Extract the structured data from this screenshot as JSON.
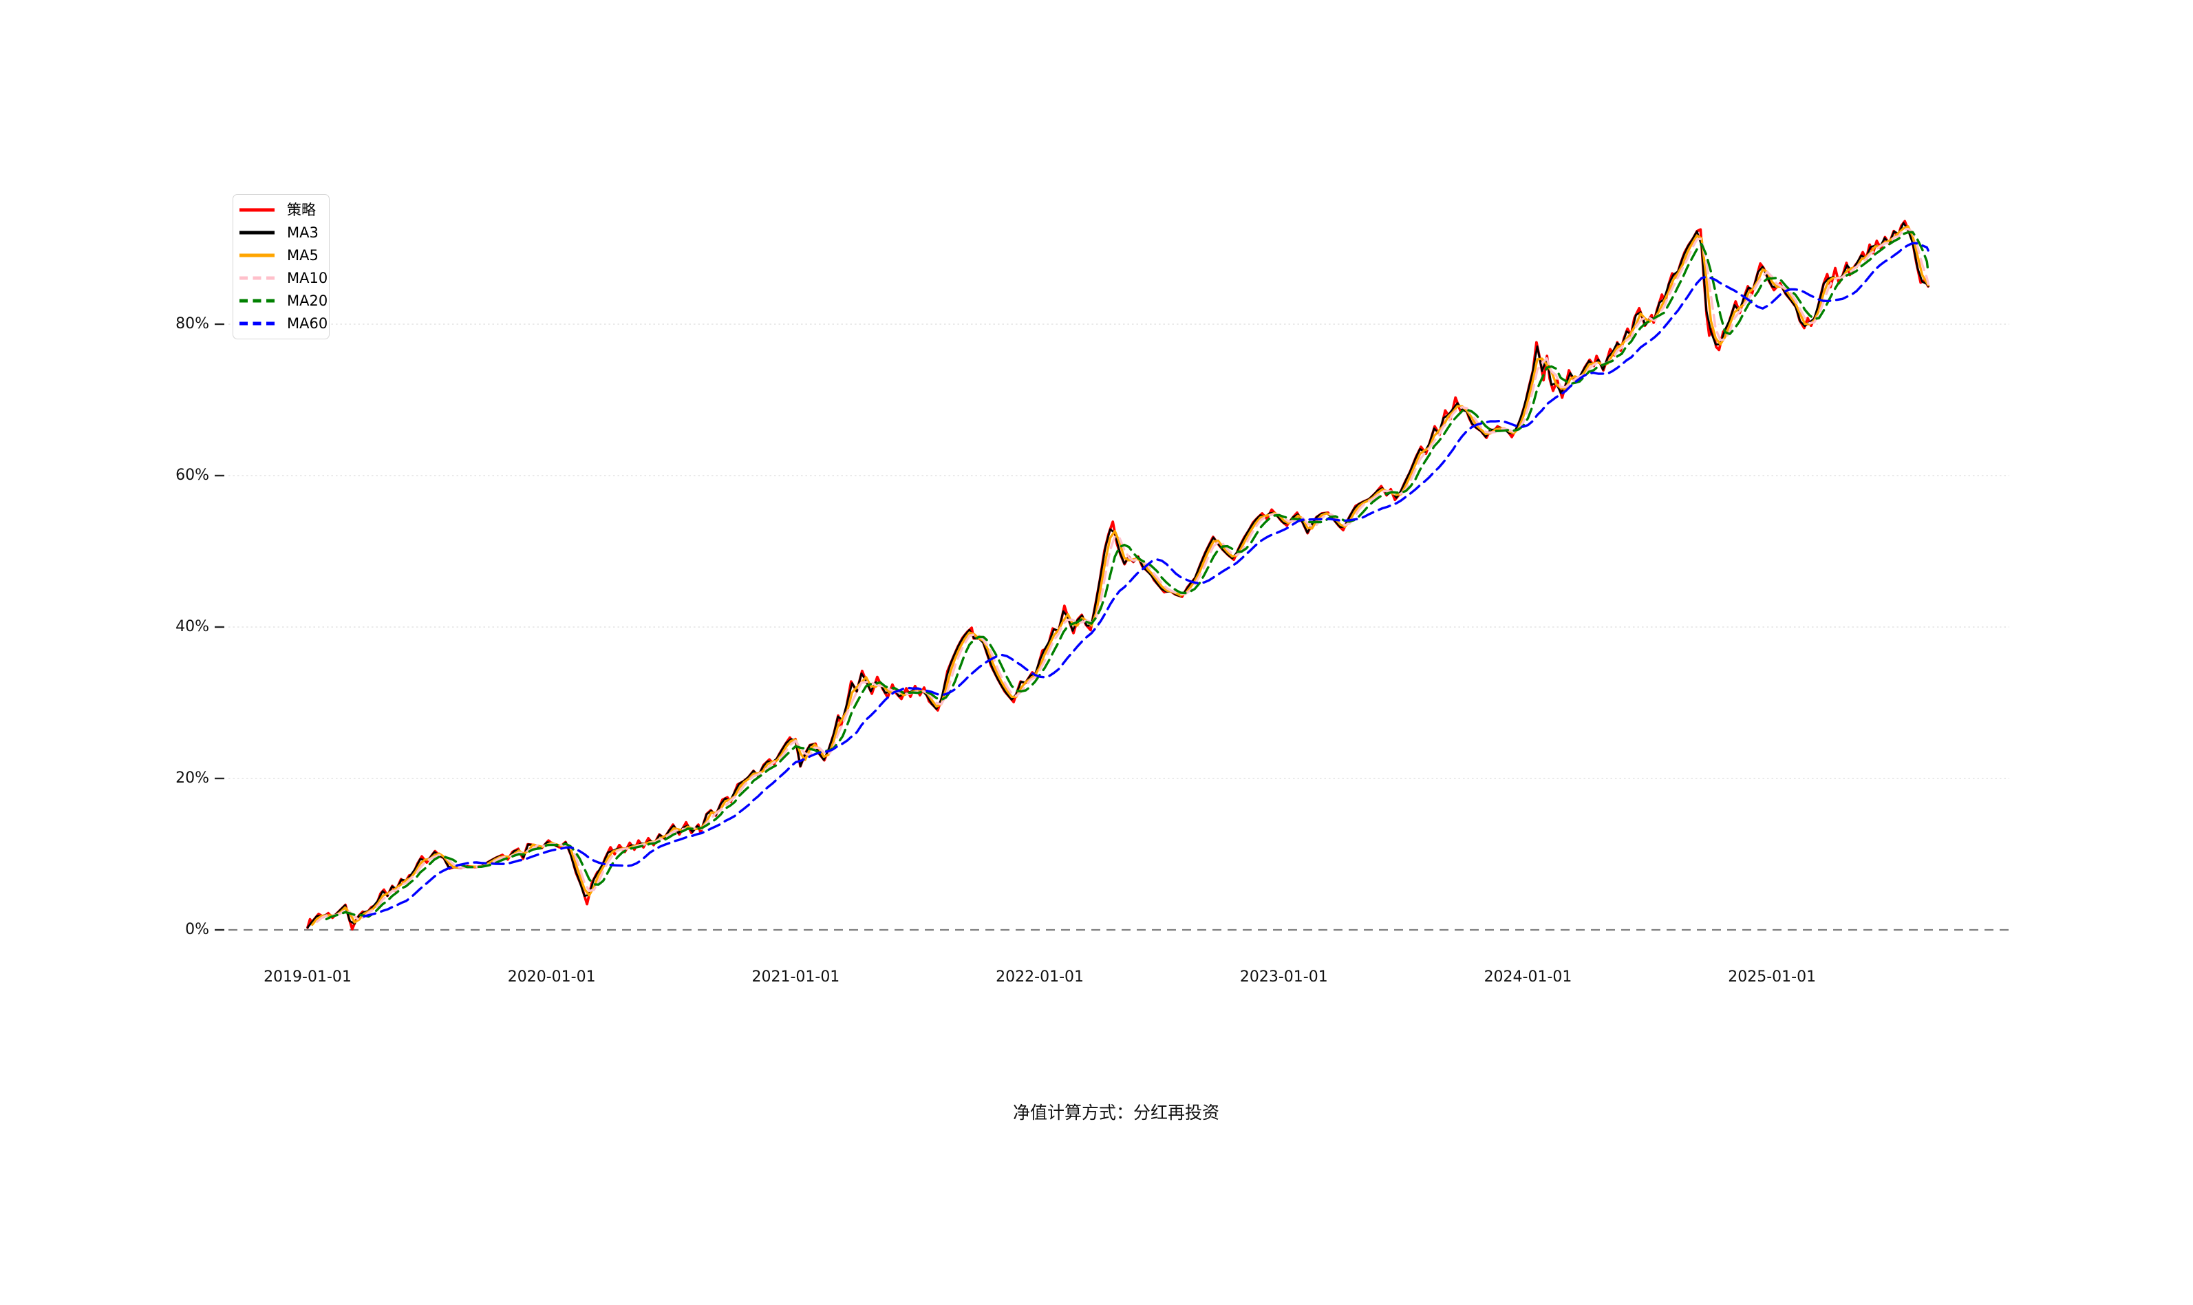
{
  "page": {
    "background_color": "#ffffff"
  },
  "footer": {
    "note": "净值计算方式：分红再投资"
  },
  "chart_data": {
    "type": "line",
    "title": "",
    "xlabel": "",
    "ylabel": "",
    "grid": "horizontal-light",
    "legend_position": "upper-left",
    "x_axis": {
      "tick_labels": [
        "2019-01-01",
        "2020-01-01",
        "2021-01-01",
        "2022-01-01",
        "2023-01-01",
        "2024-01-01",
        "2025-01-01"
      ],
      "tick_years_offset": [
        0,
        1,
        2,
        3,
        4,
        5,
        6
      ]
    },
    "y_axis": {
      "unit": "percent",
      "tick_labels": [
        "0%",
        "20%",
        "40%",
        "60%",
        "80%"
      ],
      "tick_values": [
        0,
        20,
        40,
        60,
        80
      ],
      "ylim": [
        -5,
        97
      ]
    },
    "zero_line": {
      "value": 0,
      "color": "#7f7f7f",
      "style": "dashed"
    },
    "gridline_color": "#e3e3e3",
    "series": [
      {
        "name": "策略",
        "color": "#ff0000",
        "line_style": "solid",
        "width": 3.8,
        "kind": "raw"
      },
      {
        "name": "MA3",
        "color": "#000000",
        "line_style": "solid",
        "width": 2.8,
        "ma_window_weeks": 1
      },
      {
        "name": "MA5",
        "color": "#ffa500",
        "line_style": "solid",
        "width": 3.4,
        "ma_window_weeks": 2
      },
      {
        "name": "MA10",
        "color": "#ffc0cb",
        "line_style": "dashed",
        "width": 3.4,
        "ma_window_weeks": 3
      },
      {
        "name": "MA20",
        "color": "#008000",
        "line_style": "dashed",
        "width": 3.4,
        "ma_window_weeks": 5
      },
      {
        "name": "MA60",
        "color": "#0000ff",
        "line_style": "dashed",
        "width": 3.4,
        "ma_window_weeks": 13
      }
    ],
    "points_unit": {
      "x": "years since 2019-01-01",
      "y": "cumulative return %"
    },
    "points": [
      [
        0.0,
        0.3
      ],
      [
        0.01,
        1.4
      ],
      [
        0.017,
        1.0
      ],
      [
        0.045,
        2.1
      ],
      [
        0.065,
        1.7
      ],
      [
        0.085,
        2.2
      ],
      [
        0.102,
        1.6
      ],
      [
        0.13,
        2.5
      ],
      [
        0.155,
        3.3
      ],
      [
        0.169,
        1.6
      ],
      [
        0.183,
        0.1
      ],
      [
        0.197,
        1.2
      ],
      [
        0.211,
        1.9
      ],
      [
        0.226,
        2.4
      ],
      [
        0.242,
        2.2
      ],
      [
        0.262,
        3.0
      ],
      [
        0.282,
        3.3
      ],
      [
        0.299,
        4.8
      ],
      [
        0.313,
        5.3
      ],
      [
        0.327,
        4.5
      ],
      [
        0.347,
        5.8
      ],
      [
        0.361,
        5.1
      ],
      [
        0.383,
        6.7
      ],
      [
        0.398,
        6.2
      ],
      [
        0.417,
        7.2
      ],
      [
        0.431,
        7.3
      ],
      [
        0.451,
        8.8
      ],
      [
        0.468,
        9.7
      ],
      [
        0.488,
        8.9
      ],
      [
        0.508,
        9.8
      ],
      [
        0.522,
        10.4
      ],
      [
        0.544,
        9.7
      ],
      [
        0.558,
        9.5
      ],
      [
        0.581,
        8.1
      ],
      [
        0.601,
        8.3
      ],
      [
        0.629,
        8.2
      ],
      [
        0.657,
        8.4
      ],
      [
        0.685,
        8.3
      ],
      [
        0.713,
        8.4
      ],
      [
        0.742,
        9.0
      ],
      [
        0.77,
        9.5
      ],
      [
        0.798,
        9.9
      ],
      [
        0.82,
        9.3
      ],
      [
        0.84,
        10.3
      ],
      [
        0.863,
        10.7
      ],
      [
        0.883,
        9.4
      ],
      [
        0.902,
        11.3
      ],
      [
        0.93,
        11.2
      ],
      [
        0.959,
        10.8
      ],
      [
        0.987,
        11.8
      ],
      [
        1.007,
        11.3
      ],
      [
        1.032,
        10.9
      ],
      [
        1.057,
        11.6
      ],
      [
        1.08,
        9.8
      ],
      [
        1.1,
        7.5
      ],
      [
        1.122,
        5.8
      ],
      [
        1.145,
        3.4
      ],
      [
        1.165,
        6.2
      ],
      [
        1.187,
        7.6
      ],
      [
        1.201,
        8.0
      ],
      [
        1.221,
        9.6
      ],
      [
        1.241,
        10.9
      ],
      [
        1.258,
        10.0
      ],
      [
        1.277,
        11.2
      ],
      [
        1.3,
        10.3
      ],
      [
        1.32,
        11.5
      ],
      [
        1.339,
        10.6
      ],
      [
        1.356,
        11.8
      ],
      [
        1.376,
        10.9
      ],
      [
        1.396,
        12.1
      ],
      [
        1.418,
        11.2
      ],
      [
        1.441,
        12.6
      ],
      [
        1.461,
        12.1
      ],
      [
        1.497,
        13.9
      ],
      [
        1.523,
        12.6
      ],
      [
        1.551,
        14.2
      ],
      [
        1.573,
        12.8
      ],
      [
        1.601,
        13.9
      ],
      [
        1.61,
        12.8
      ],
      [
        1.635,
        15.3
      ],
      [
        1.652,
        15.8
      ],
      [
        1.672,
        15.1
      ],
      [
        1.7,
        17.2
      ],
      [
        1.72,
        17.5
      ],
      [
        1.734,
        16.9
      ],
      [
        1.762,
        19.2
      ],
      [
        1.785,
        19.6
      ],
      [
        1.804,
        20.1
      ],
      [
        1.827,
        21.0
      ],
      [
        1.847,
        20.3
      ],
      [
        1.869,
        21.8
      ],
      [
        1.892,
        22.5
      ],
      [
        1.911,
        21.9
      ],
      [
        1.934,
        23.3
      ],
      [
        1.957,
        24.5
      ],
      [
        1.976,
        25.4
      ],
      [
        1.99,
        24.8
      ],
      [
        1.999,
        25.2
      ],
      [
        2.019,
        21.6
      ],
      [
        2.039,
        23.3
      ],
      [
        2.058,
        24.4
      ],
      [
        2.081,
        24.6
      ],
      [
        2.095,
        23.3
      ],
      [
        2.117,
        22.4
      ],
      [
        2.137,
        24.0
      ],
      [
        2.157,
        26.0
      ],
      [
        2.174,
        28.3
      ],
      [
        2.185,
        26.9
      ],
      [
        2.208,
        29.5
      ],
      [
        2.227,
        32.8
      ],
      [
        2.25,
        31.5
      ],
      [
        2.272,
        34.2
      ],
      [
        2.292,
        32.6
      ],
      [
        2.312,
        31.2
      ],
      [
        2.334,
        33.4
      ],
      [
        2.357,
        31.8
      ],
      [
        2.377,
        30.7
      ],
      [
        2.396,
        32.4
      ],
      [
        2.413,
        31.2
      ],
      [
        2.433,
        30.5
      ],
      [
        2.453,
        31.9
      ],
      [
        2.47,
        30.8
      ],
      [
        2.489,
        32.2
      ],
      [
        2.509,
        31.0
      ],
      [
        2.526,
        32.0
      ],
      [
        2.546,
        30.2
      ],
      [
        2.565,
        29.6
      ],
      [
        2.582,
        29.0
      ],
      [
        2.602,
        31.0
      ],
      [
        2.622,
        34.2
      ],
      [
        2.645,
        36.0
      ],
      [
        2.664,
        37.4
      ],
      [
        2.684,
        38.6
      ],
      [
        2.704,
        39.4
      ],
      [
        2.721,
        39.9
      ],
      [
        2.729,
        38.5
      ],
      [
        2.763,
        38.5
      ],
      [
        2.8,
        34.9
      ],
      [
        2.828,
        33.1
      ],
      [
        2.856,
        31.5
      ],
      [
        2.893,
        30.1
      ],
      [
        2.921,
        32.8
      ],
      [
        2.941,
        32.6
      ],
      [
        2.969,
        34.0
      ],
      [
        2.983,
        33.7
      ],
      [
        3.011,
        36.9
      ],
      [
        3.031,
        37.2
      ],
      [
        3.053,
        39.8
      ],
      [
        3.076,
        39.4
      ],
      [
        3.09,
        41.2
      ],
      [
        3.101,
        42.8
      ],
      [
        3.118,
        41.0
      ],
      [
        3.138,
        39.2
      ],
      [
        3.155,
        41.0
      ],
      [
        3.172,
        41.6
      ],
      [
        3.189,
        40.3
      ],
      [
        3.208,
        39.6
      ],
      [
        3.228,
        43.0
      ],
      [
        3.245,
        46.0
      ],
      [
        3.265,
        50.1
      ],
      [
        3.282,
        52.3
      ],
      [
        3.299,
        53.9
      ],
      [
        3.316,
        51.0
      ],
      [
        3.33,
        49.6
      ],
      [
        3.347,
        48.3
      ],
      [
        3.364,
        49.3
      ],
      [
        3.383,
        48.6
      ],
      [
        3.403,
        49.3
      ],
      [
        3.42,
        48.0
      ],
      [
        3.44,
        47.4
      ],
      [
        3.457,
        46.9
      ],
      [
        3.468,
        46.2
      ],
      [
        3.487,
        45.5
      ],
      [
        3.51,
        44.6
      ],
      [
        3.533,
        44.8
      ],
      [
        3.555,
        44.3
      ],
      [
        3.583,
        44.0
      ],
      [
        3.606,
        45.3
      ],
      [
        3.637,
        46.5
      ],
      [
        3.657,
        48.2
      ],
      [
        3.679,
        49.9
      ],
      [
        3.696,
        51.0
      ],
      [
        3.71,
        51.9
      ],
      [
        3.73,
        51.0
      ],
      [
        3.75,
        50.2
      ],
      [
        3.772,
        49.5
      ],
      [
        3.795,
        48.9
      ],
      [
        3.815,
        50.4
      ],
      [
        3.837,
        51.8
      ],
      [
        3.857,
        52.8
      ],
      [
        3.874,
        53.8
      ],
      [
        3.891,
        54.4
      ],
      [
        3.911,
        55.0
      ],
      [
        3.93,
        54.3
      ],
      [
        3.95,
        55.5
      ],
      [
        3.97,
        54.8
      ],
      [
        3.99,
        54.0
      ],
      [
        4.012,
        53.4
      ],
      [
        4.035,
        54.4
      ],
      [
        4.054,
        55.1
      ],
      [
        4.077,
        53.8
      ],
      [
        4.097,
        52.4
      ],
      [
        4.116,
        53.6
      ],
      [
        4.133,
        54.5
      ],
      [
        4.156,
        55.0
      ],
      [
        4.181,
        55.1
      ],
      [
        4.204,
        54.2
      ],
      [
        4.224,
        53.4
      ],
      [
        4.243,
        52.8
      ],
      [
        4.266,
        54.4
      ],
      [
        4.294,
        56.0
      ],
      [
        4.322,
        56.5
      ],
      [
        4.35,
        56.9
      ],
      [
        4.378,
        57.8
      ],
      [
        4.399,
        58.6
      ],
      [
        4.421,
        57.4
      ],
      [
        4.438,
        58.2
      ],
      [
        4.455,
        56.8
      ],
      [
        4.475,
        57.6
      ],
      [
        4.494,
        59.0
      ],
      [
        4.517,
        60.5
      ],
      [
        4.542,
        62.5
      ],
      [
        4.562,
        63.8
      ],
      [
        4.582,
        62.9
      ],
      [
        4.599,
        64.5
      ],
      [
        4.618,
        66.5
      ],
      [
        4.638,
        65.4
      ],
      [
        4.661,
        68.6
      ],
      [
        4.683,
        67.5
      ],
      [
        4.703,
        70.3
      ],
      [
        4.723,
        68.6
      ],
      [
        4.745,
        68.9
      ],
      [
        4.759,
        67.6
      ],
      [
        4.773,
        66.7
      ],
      [
        4.793,
        66.2
      ],
      [
        4.807,
        65.9
      ],
      [
        4.83,
        65.0
      ],
      [
        4.847,
        66.1
      ],
      [
        4.858,
        65.8
      ],
      [
        4.875,
        66.5
      ],
      [
        4.894,
        66.2
      ],
      [
        4.914,
        66.0
      ],
      [
        4.934,
        65.1
      ],
      [
        4.954,
        66.3
      ],
      [
        4.971,
        67.6
      ],
      [
        4.99,
        69.7
      ],
      [
        5.004,
        71.7
      ],
      [
        5.021,
        73.9
      ],
      [
        5.035,
        77.6
      ],
      [
        5.05,
        75.3
      ],
      [
        5.064,
        72.6
      ],
      [
        5.078,
        75.8
      ],
      [
        5.089,
        72.8
      ],
      [
        5.103,
        71.2
      ],
      [
        5.12,
        72.6
      ],
      [
        5.14,
        70.3
      ],
      [
        5.157,
        72.3
      ],
      [
        5.168,
        73.9
      ],
      [
        5.182,
        72.9
      ],
      [
        5.196,
        72.6
      ],
      [
        5.216,
        73.2
      ],
      [
        5.233,
        74.3
      ],
      [
        5.253,
        75.3
      ],
      [
        5.27,
        74.5
      ],
      [
        5.281,
        75.8
      ],
      [
        5.298,
        74.7
      ],
      [
        5.309,
        73.9
      ],
      [
        5.326,
        75.5
      ],
      [
        5.337,
        76.7
      ],
      [
        5.354,
        75.9
      ],
      [
        5.366,
        77.6
      ],
      [
        5.38,
        76.5
      ],
      [
        5.394,
        78.2
      ],
      [
        5.408,
        79.4
      ],
      [
        5.422,
        78.5
      ],
      [
        5.436,
        80.8
      ],
      [
        5.456,
        82.1
      ],
      [
        5.473,
        80.5
      ],
      [
        5.479,
        79.8
      ],
      [
        5.496,
        80.6
      ],
      [
        5.507,
        81.2
      ],
      [
        5.515,
        80.2
      ],
      [
        5.529,
        81.9
      ],
      [
        5.549,
        83.9
      ],
      [
        5.563,
        82.9
      ],
      [
        5.577,
        85.3
      ],
      [
        5.591,
        86.7
      ],
      [
        5.608,
        86.2
      ],
      [
        5.625,
        88.0
      ],
      [
        5.642,
        89.5
      ],
      [
        5.659,
        90.5
      ],
      [
        5.676,
        91.3
      ],
      [
        5.693,
        92.3
      ],
      [
        5.707,
        92.5
      ],
      [
        5.721,
        86.0
      ],
      [
        5.732,
        81.3
      ],
      [
        5.743,
        78.5
      ],
      [
        5.757,
        79.5
      ],
      [
        5.771,
        77.0
      ],
      [
        5.783,
        76.6
      ],
      [
        5.8,
        79.0
      ],
      [
        5.817,
        79.6
      ],
      [
        5.834,
        81.3
      ],
      [
        5.851,
        83.0
      ],
      [
        5.868,
        81.5
      ],
      [
        5.885,
        83.5
      ],
      [
        5.901,
        85.0
      ],
      [
        5.918,
        84.0
      ],
      [
        5.935,
        86.0
      ],
      [
        5.952,
        88.0
      ],
      [
        5.966,
        87.4
      ],
      [
        5.986,
        85.8
      ],
      [
        6.008,
        84.5
      ],
      [
        6.033,
        85.4
      ],
      [
        6.056,
        84.0
      ],
      [
        6.079,
        83.1
      ],
      [
        6.099,
        82.2
      ],
      [
        6.113,
        80.5
      ],
      [
        6.132,
        79.5
      ],
      [
        6.146,
        80.8
      ],
      [
        6.16,
        79.8
      ],
      [
        6.183,
        81.5
      ],
      [
        6.197,
        83.5
      ],
      [
        6.212,
        85.4
      ],
      [
        6.226,
        86.6
      ],
      [
        6.24,
        84.9
      ],
      [
        6.259,
        87.4
      ],
      [
        6.274,
        85.4
      ],
      [
        6.288,
        86.3
      ],
      [
        6.305,
        88.1
      ],
      [
        6.319,
        86.5
      ],
      [
        6.333,
        87.4
      ],
      [
        6.353,
        88.3
      ],
      [
        6.372,
        89.5
      ],
      [
        6.386,
        88.6
      ],
      [
        6.4,
        90.5
      ],
      [
        6.414,
        89.4
      ],
      [
        6.429,
        91.0
      ],
      [
        6.446,
        90.0
      ],
      [
        6.463,
        91.5
      ],
      [
        6.48,
        90.6
      ],
      [
        6.499,
        92.3
      ],
      [
        6.516,
        91.6
      ],
      [
        6.53,
        93.0
      ],
      [
        6.544,
        93.6
      ],
      [
        6.561,
        92.2
      ],
      [
        6.575,
        91.0
      ],
      [
        6.592,
        88.0
      ],
      [
        6.609,
        85.5
      ],
      [
        6.626,
        85.8
      ],
      [
        6.64,
        85.0
      ]
    ]
  }
}
